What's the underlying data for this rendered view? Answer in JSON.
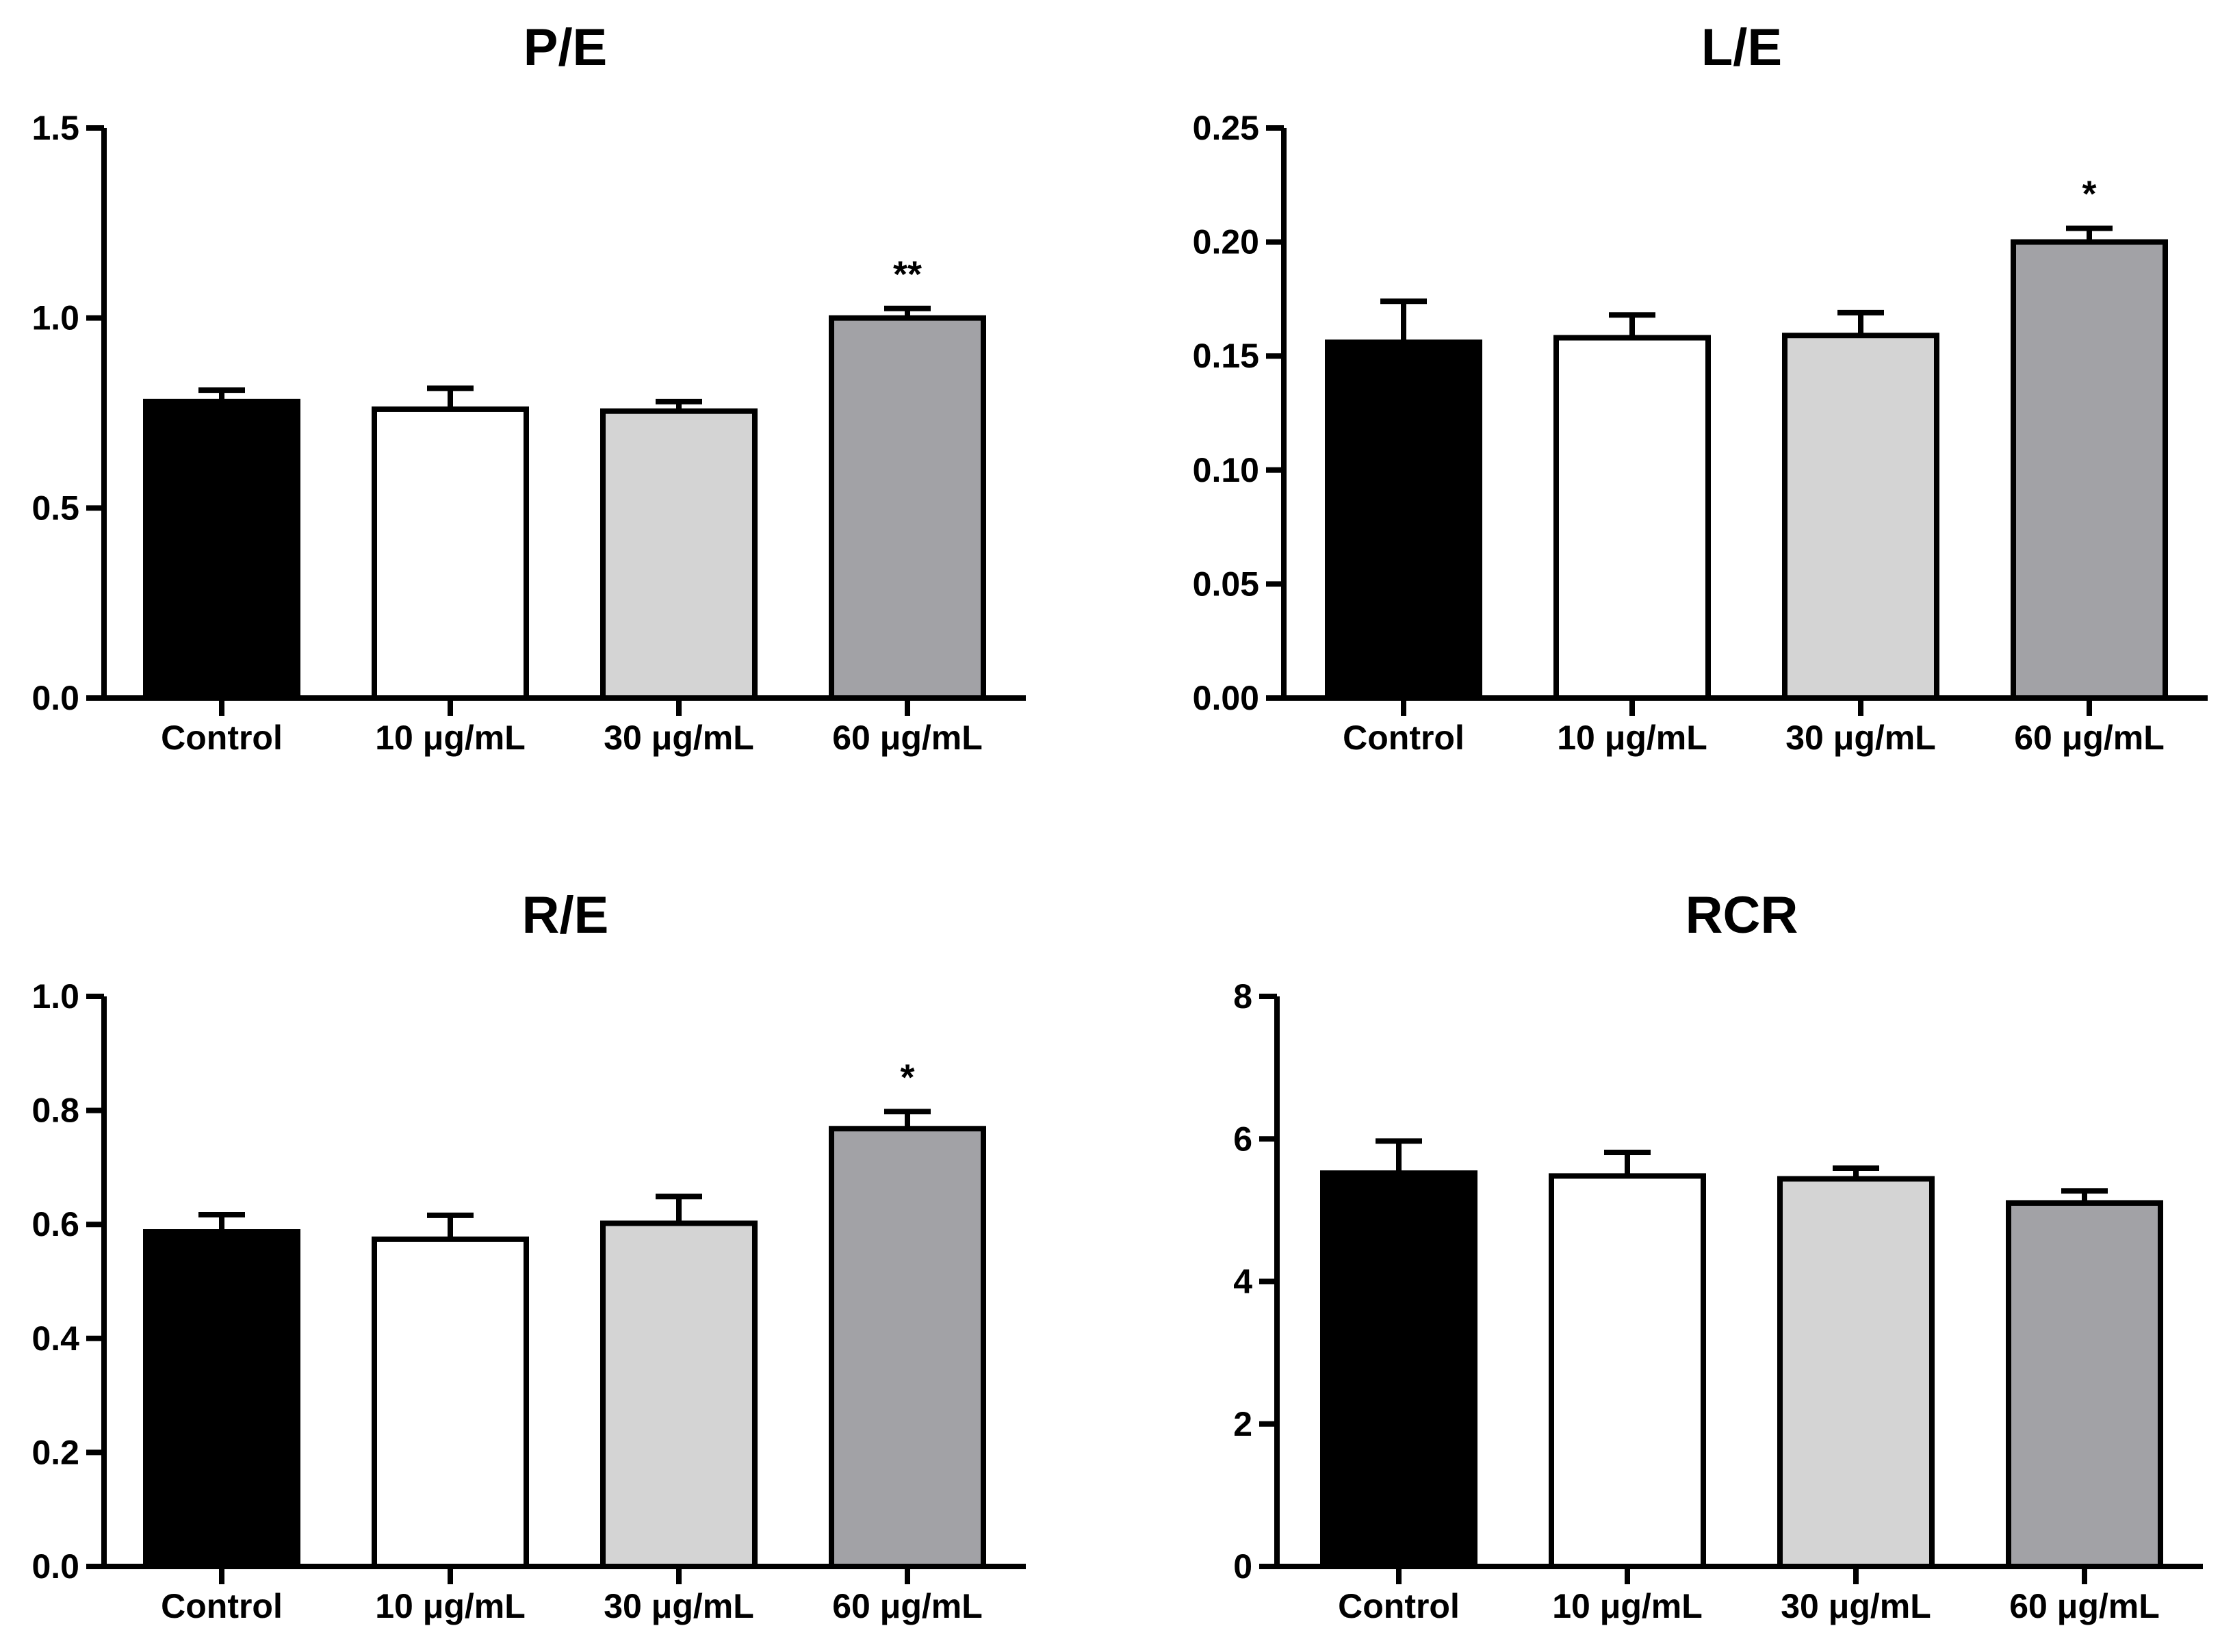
{
  "chart_data": [
    {
      "type": "bar",
      "title": "P/E",
      "categories": [
        "Control",
        "10 μg/mL",
        "30 μg/mL",
        "60 μg/mL"
      ],
      "values": [
        0.78,
        0.76,
        0.755,
        1.0
      ],
      "errors": [
        0.03,
        0.055,
        0.025,
        0.025
      ],
      "significance": [
        "",
        "",
        "",
        "**"
      ],
      "ylim": [
        0,
        1.5
      ],
      "yticks": [
        "0.0",
        "0.5",
        "1.0",
        "1.5"
      ],
      "ytick_values": [
        0,
        0.5,
        1.0,
        1.5
      ],
      "xlabel": "",
      "ylabel": ""
    },
    {
      "type": "bar",
      "title": "L/E",
      "categories": [
        "Control",
        "10 μg/mL",
        "30 μg/mL",
        "60 μg/mL"
      ],
      "values": [
        0.156,
        0.158,
        0.159,
        0.2
      ],
      "errors": [
        0.018,
        0.01,
        0.01,
        0.006
      ],
      "significance": [
        "",
        "",
        "",
        "*"
      ],
      "ylim": [
        0,
        0.25
      ],
      "yticks": [
        "0.00",
        "0.05",
        "0.10",
        "0.15",
        "0.20",
        "0.25"
      ],
      "ytick_values": [
        0,
        0.05,
        0.1,
        0.15,
        0.2,
        0.25
      ],
      "xlabel": "",
      "ylabel": ""
    },
    {
      "type": "bar",
      "title": "R/E",
      "categories": [
        "Control",
        "10 μg/mL",
        "30 μg/mL",
        "60 μg/mL"
      ],
      "values": [
        0.587,
        0.574,
        0.602,
        0.768
      ],
      "errors": [
        0.03,
        0.042,
        0.047,
        0.03
      ],
      "significance": [
        "",
        "",
        "",
        "*"
      ],
      "ylim": [
        0,
        1.0
      ],
      "yticks": [
        "0.0",
        "0.2",
        "0.4",
        "0.6",
        "0.8",
        "1.0"
      ],
      "ytick_values": [
        0,
        0.2,
        0.4,
        0.6,
        0.8,
        1.0
      ],
      "xlabel": "",
      "ylabel": ""
    },
    {
      "type": "bar",
      "title": "RCR",
      "categories": [
        "Control",
        "10 μg/mL",
        "30 μg/mL",
        "60 μg/mL"
      ],
      "values": [
        5.52,
        5.48,
        5.44,
        5.1
      ],
      "errors": [
        0.45,
        0.33,
        0.15,
        0.17
      ],
      "significance": [
        "",
        "",
        "",
        ""
      ],
      "ylim": [
        0,
        8
      ],
      "yticks": [
        "0",
        "2",
        "4",
        "6",
        "8"
      ],
      "ytick_values": [
        0,
        2,
        4,
        6,
        8
      ],
      "xlabel": "",
      "ylabel": ""
    }
  ],
  "bar_fills": [
    "#000000",
    "#ffffff",
    "#d4d4d4",
    "#a2a2a6"
  ],
  "colors": {
    "stroke": "#000000",
    "background": "#ffffff"
  }
}
